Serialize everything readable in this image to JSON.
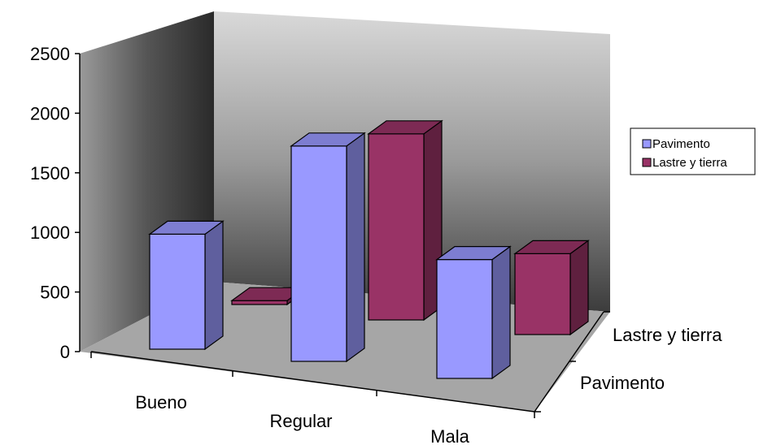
{
  "chart_data": {
    "type": "bar",
    "variant": "3d-column",
    "title": "",
    "xlabel": "",
    "ylabel": "",
    "categories": [
      "Bueno",
      "Regular",
      "Mala"
    ],
    "series": [
      {
        "name": "Pavimento",
        "values": [
          1180,
          2210,
          1220
        ],
        "color": "#9999ff"
      },
      {
        "name": "Lastre y tierra",
        "values": [
          40,
          1910,
          830
        ],
        "color": "#993366"
      }
    ],
    "ylim": [
      0,
      2500
    ],
    "yticks": [
      "0",
      "500",
      "1000",
      "1500",
      "2000",
      "2500"
    ],
    "series_axis_labels": [
      "Pavimento",
      "Lastre y tierra"
    ],
    "legend": {
      "position": "right",
      "entries": [
        "Pavimento",
        "Lastre y tierra"
      ]
    },
    "grid": false
  }
}
